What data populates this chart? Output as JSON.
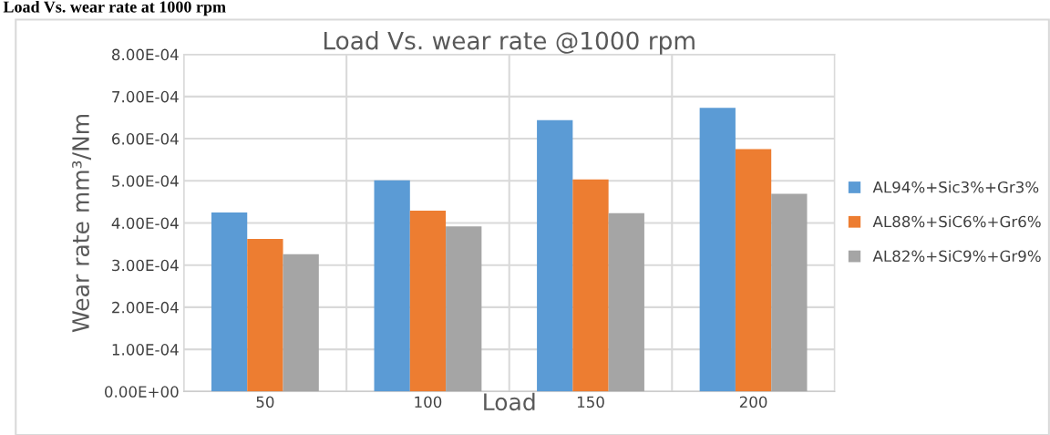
{
  "chart_data": {
    "type": "bar",
    "title": "Load Vs. wear rate @1000 rpm",
    "annotations": [
      "Load Vs. wear rate at 1000 rpm"
    ],
    "xlabel": "Load",
    "ylabel": "Wear rate mm³/Nm",
    "categories": [
      "50",
      "100",
      "150",
      "200"
    ],
    "series": [
      {
        "name": "AL94%+Sic3%+Gr3%",
        "color": "#5b9bd5",
        "values": [
          0.000425,
          0.000501,
          0.000644,
          0.000673
        ]
      },
      {
        "name": "AL88%+SiC6%+Gr6%",
        "color": "#ed7d31",
        "values": [
          0.000362,
          0.000429,
          0.000503,
          0.000575
        ]
      },
      {
        "name": "AL82%+SiC9%+Gr9%",
        "color": "#a5a5a5",
        "values": [
          0.000326,
          0.000392,
          0.000423,
          0.000469
        ]
      }
    ],
    "ylim": [
      0,
      0.0008
    ],
    "yticks": [
      {
        "value": 0,
        "label": "0.00E+00"
      },
      {
        "value": 0.0001,
        "label": "1.00E-04"
      },
      {
        "value": 0.0002,
        "label": "2.00E-04"
      },
      {
        "value": 0.0003,
        "label": "3.00E-04"
      },
      {
        "value": 0.0004,
        "label": "4.00E-04"
      },
      {
        "value": 0.0005,
        "label": "5.00E-04"
      },
      {
        "value": 0.0006,
        "label": "6.00E-04"
      },
      {
        "value": 0.0007,
        "label": "7.00E-04"
      },
      {
        "value": 0.0008,
        "label": "8.00E-04"
      }
    ],
    "grid": true,
    "legend": "right"
  }
}
